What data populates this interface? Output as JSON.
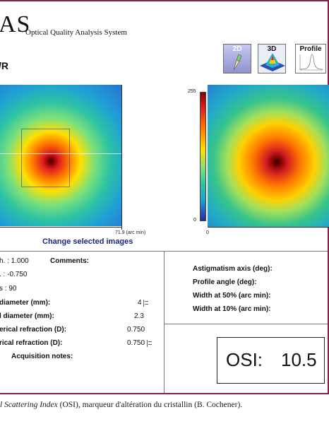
{
  "header": {
    "logo_text": "AS",
    "subtitle": "Optical Quality Analysis System"
  },
  "section_title": "/R",
  "view_buttons": [
    {
      "label": "2D",
      "icon": "pencil-2d-icon"
    },
    {
      "label": "3D",
      "icon": "surface-3d-icon"
    },
    {
      "label": "Profile",
      "icon": "profile-curve-icon"
    }
  ],
  "left_image": {
    "axis_label": "71.9 (arc min)"
  },
  "colorbar": {
    "max_label": "255",
    "min_label": "0"
  },
  "right_image": {
    "axis_zero": "0"
  },
  "change_link": "Change selected images",
  "left_panel": {
    "rows": [
      {
        "label": "h. : 1.000",
        "bold": false
      },
      {
        "label": "Comments:",
        "bold": true
      },
      {
        "label": ". : -0.750",
        "bold": false
      },
      {
        "label": "s : 90",
        "bold": false
      },
      {
        "label": "diameter (mm):",
        "bold": true,
        "value": "4"
      },
      {
        "label": "l diameter (mm):",
        "bold": true,
        "value": "2.3"
      },
      {
        "label": "erical refraction (D):",
        "bold": true,
        "value": "0.750"
      },
      {
        "label": "rical refraction (D):",
        "bold": true,
        "value": "0.750"
      },
      {
        "label": "Acquisition notes:",
        "bold": true
      }
    ]
  },
  "right_panel": {
    "rows": [
      "Astigmatism axis (deg):",
      "Profile angle (deg):",
      "Width at 50% (arc min):",
      "Width at 10% (arc min):"
    ]
  },
  "osi": {
    "label": "OSI:",
    "value": "10.5"
  },
  "caption": {
    "italic": "l Scattering Index",
    "rest": " (OSI), marqueur d'altération du cristallin (B. Cochener)."
  },
  "colors": {
    "frame_border": "#8a1f4a",
    "link": "#1a2a7a"
  }
}
